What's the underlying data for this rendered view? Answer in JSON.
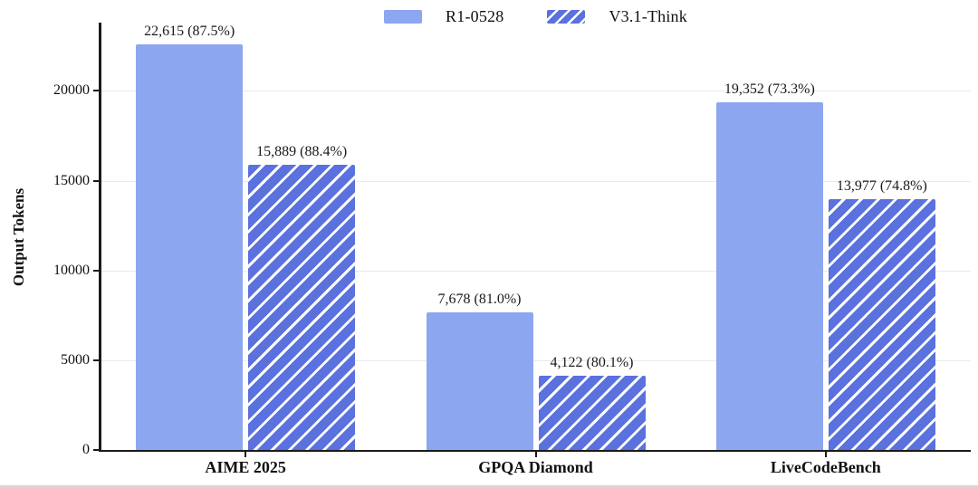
{
  "figure": {
    "background": "#ffffff"
  },
  "legend": {
    "items": [
      {
        "label": "R1-0528",
        "style": "solid"
      },
      {
        "label": "V3.1-Think",
        "style": "hatched"
      }
    ]
  },
  "chart_data": {
    "type": "bar",
    "title": "",
    "xlabel": "",
    "ylabel": "Output Tokens",
    "categories": [
      "AIME 2025",
      "GPQA Diamond",
      "LiveCodeBench"
    ],
    "series": [
      {
        "name": "R1-0528",
        "style": "solid",
        "values": [
          22615,
          7678,
          19352
        ],
        "labels": [
          "22,615 (87.5%)",
          "7,678 (81.0%)",
          "19,352 (73.3%)"
        ]
      },
      {
        "name": "V3.1-Think",
        "style": "hatched",
        "values": [
          15889,
          4122,
          13977
        ],
        "labels": [
          "15,889 (88.4%)",
          "4,122 (80.1%)",
          "13,977 (74.8%)"
        ]
      }
    ],
    "ylim": [
      0,
      23800
    ],
    "yticks": [
      0,
      5000,
      10000,
      15000,
      20000
    ],
    "grid": "horizontal",
    "legend_position": "top-center"
  },
  "colors": {
    "solid_bar": "#8ca6f0",
    "hatched_bar_fill": "#5a71de",
    "hatch_stripe": "#ffffff",
    "gridline": "#e9e9e9",
    "axis_spine": "#1a1a1a",
    "text": "#111111",
    "bottom_edge": "#d6d6d6"
  }
}
